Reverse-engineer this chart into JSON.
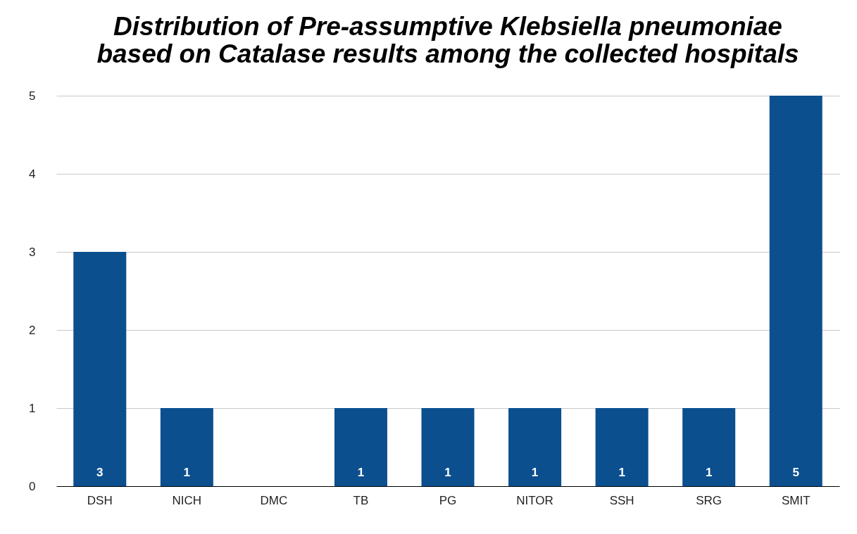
{
  "chart_data": {
    "type": "bar",
    "title": [
      "Distribution of Pre-assumptive Klebsiella pneumoniae",
      "based on Catalase results among the collected hospitals"
    ],
    "categories": [
      "DSH",
      "NICH",
      "DMC",
      "TB",
      "PG",
      "NITOR",
      "SSH",
      "SRG",
      "SMIT"
    ],
    "values": [
      3,
      1,
      0,
      1,
      1,
      1,
      1,
      1,
      5
    ],
    "value_labels": [
      "3",
      "1",
      null,
      "1",
      "1",
      "1",
      "1",
      "1",
      "5"
    ],
    "color": "#0b4f8f",
    "ylim": [
      0,
      5
    ],
    "yticks": [
      0,
      1,
      2,
      3,
      4,
      5
    ],
    "grid": "y"
  }
}
